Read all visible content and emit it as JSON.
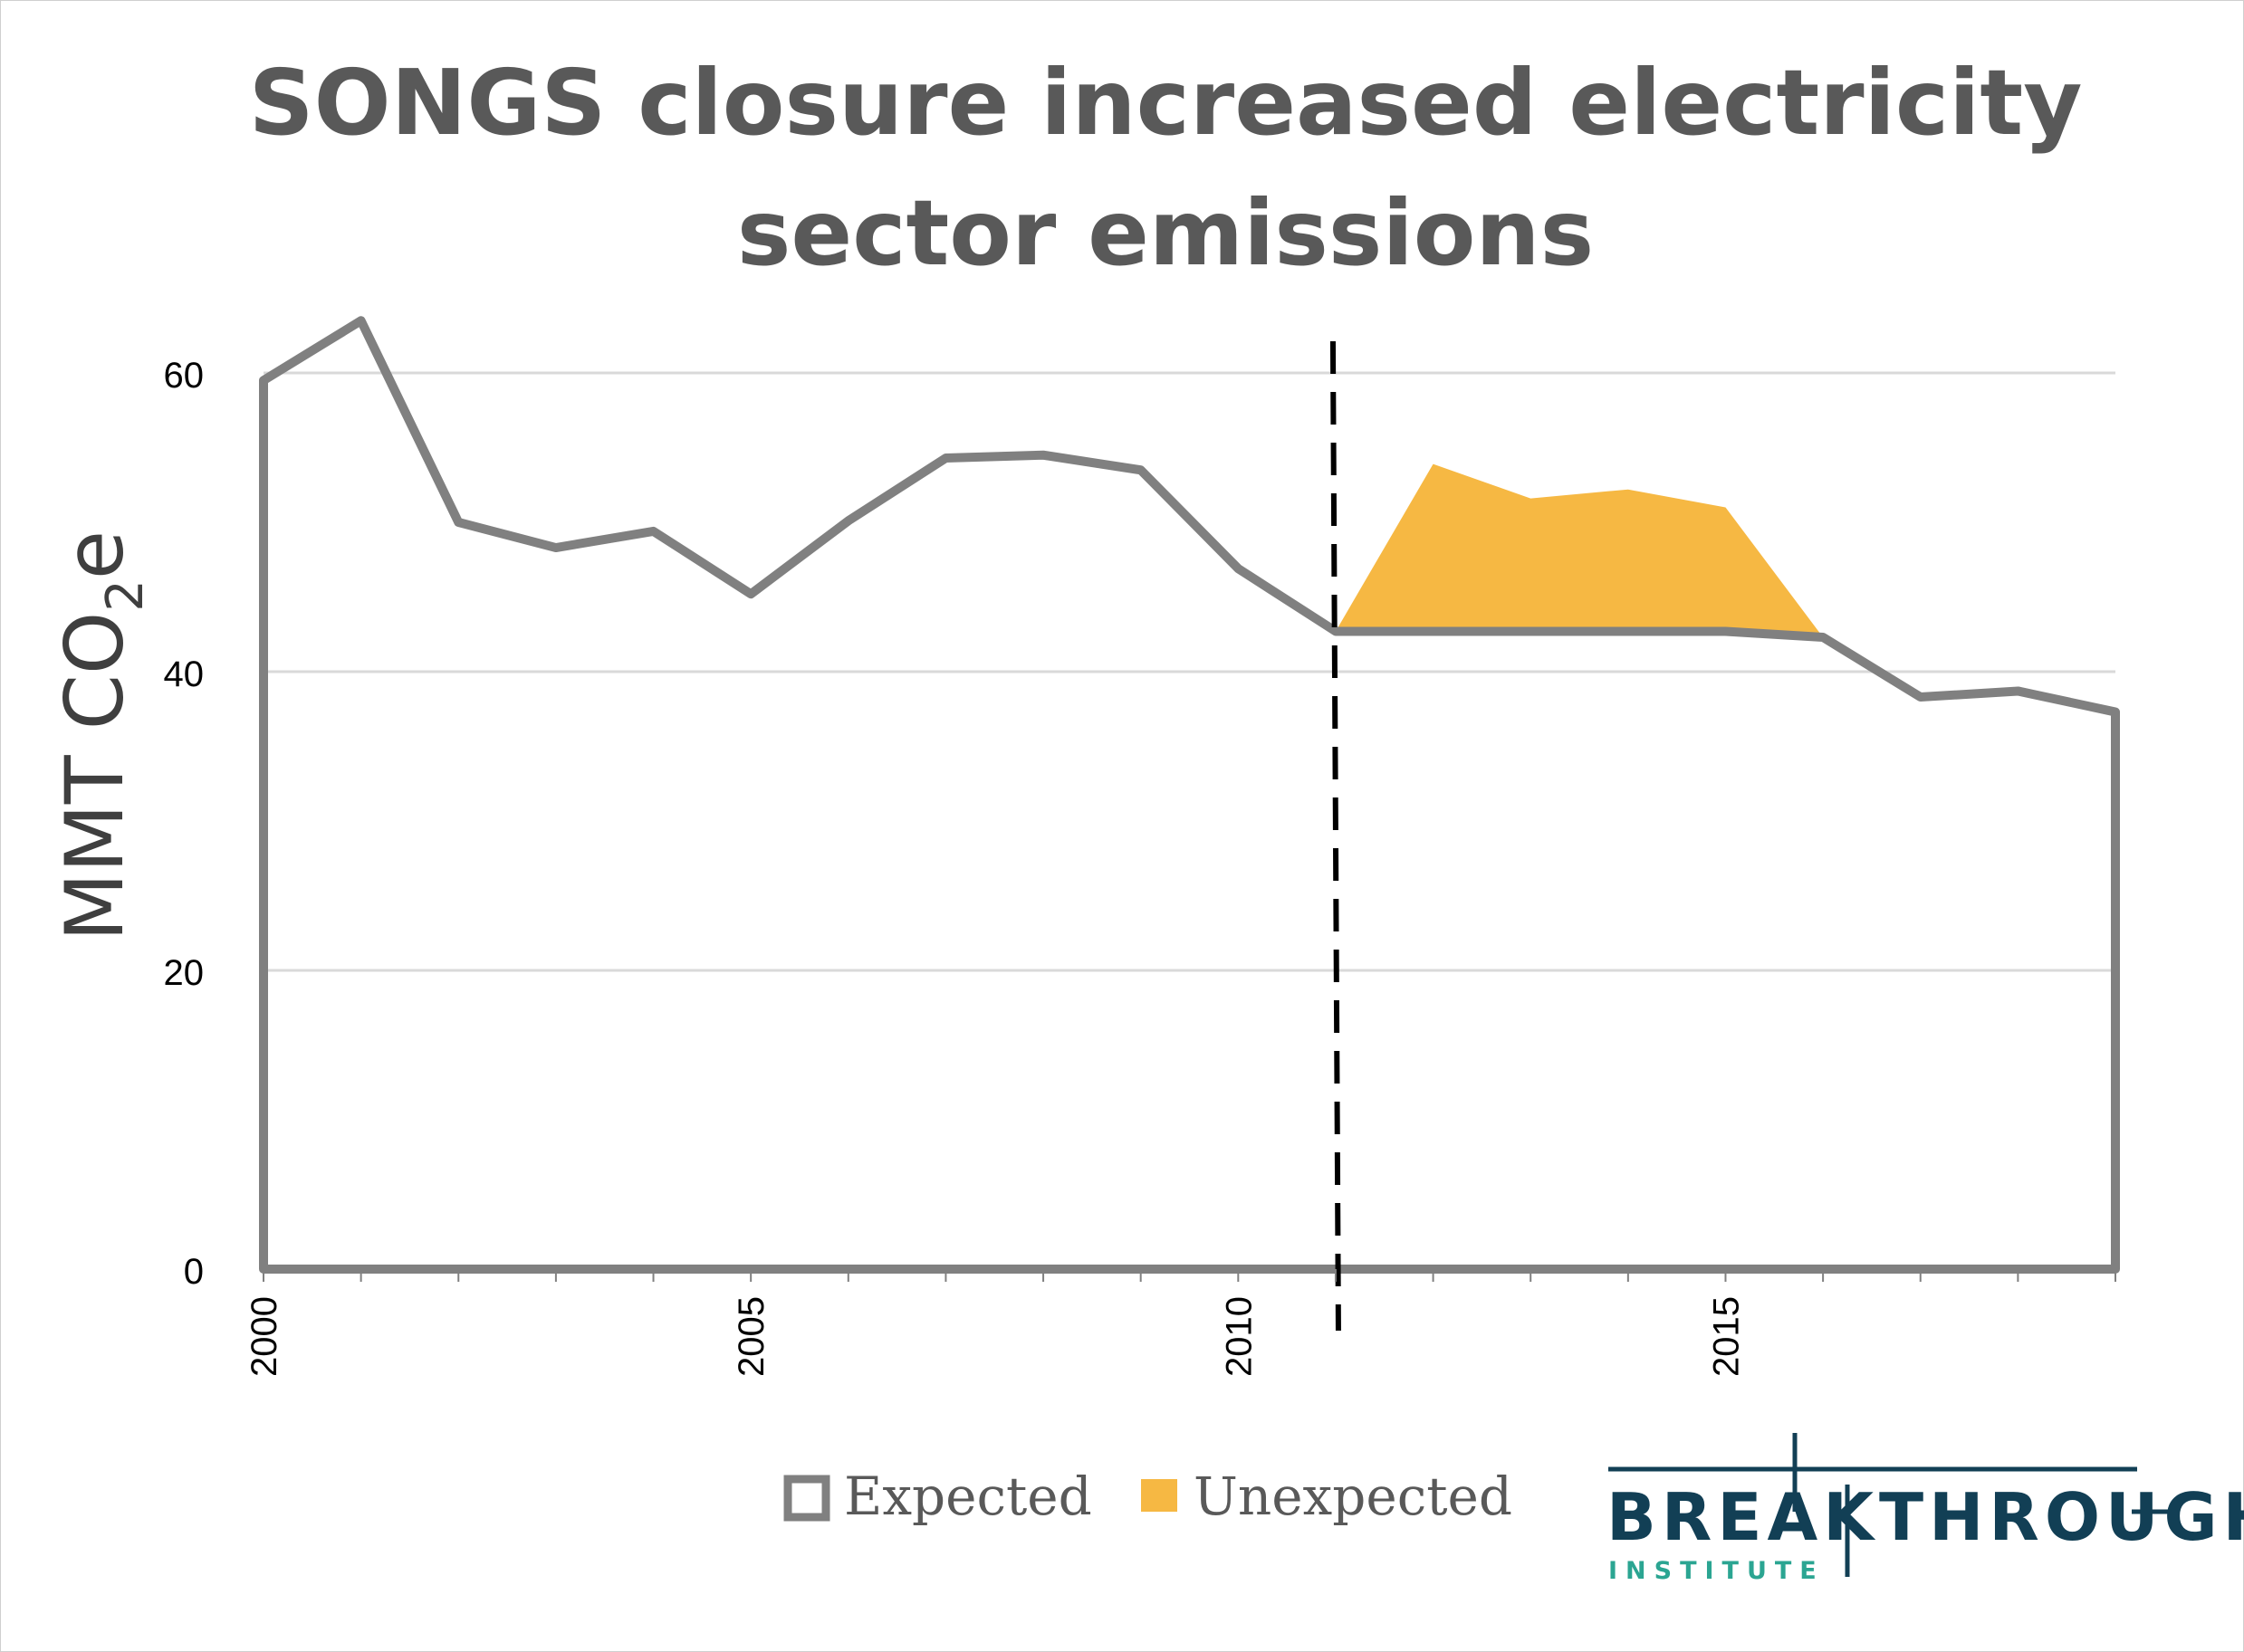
{
  "chart_data": {
    "type": "area",
    "title": [
      "SONGS closure increased electricity",
      "sector emissions"
    ],
    "ylabel": "MMT CO",
    "ylabel_sub": "2",
    "ylabel_end": "e",
    "xlabel": "",
    "ylim": [
      0,
      60
    ],
    "yticks": [
      "0",
      "20",
      "40",
      "60"
    ],
    "xlim": [
      2000,
      2019
    ],
    "xticks": [
      "2000",
      "2005",
      "2010",
      "2015"
    ],
    "grid": true,
    "legend_position": "bottom-center",
    "marker_line_year": 2011,
    "x": [
      2000,
      2001,
      2002,
      2003,
      2004,
      2005,
      2006,
      2007,
      2008,
      2009,
      2010,
      2011,
      2012,
      2013,
      2014,
      2015,
      2016,
      2017,
      2018,
      2019
    ],
    "series": [
      {
        "name": "Expected",
        "color": "#808080",
        "values": [
          59.5,
          63.5,
          50.0,
          48.3,
          49.4,
          45.2,
          50.1,
          54.3,
          54.5,
          53.5,
          46.9,
          42.7,
          42.7,
          42.7,
          42.7,
          42.7,
          42.3,
          38.3,
          38.7,
          37.3
        ]
      },
      {
        "name": "Unexpected",
        "color": "#f6b843",
        "x": [
          2011,
          2012,
          2013,
          2014,
          2015,
          2016
        ],
        "values": [
          42.7,
          53.9,
          51.6,
          52.2,
          51.0,
          42.3
        ]
      }
    ]
  },
  "legend": {
    "expected_label": "Expected",
    "unexpected_label": "Unexpected"
  },
  "logo": {
    "name": "BREAKTHROUGH",
    "subtitle": "INSTITUTE"
  }
}
